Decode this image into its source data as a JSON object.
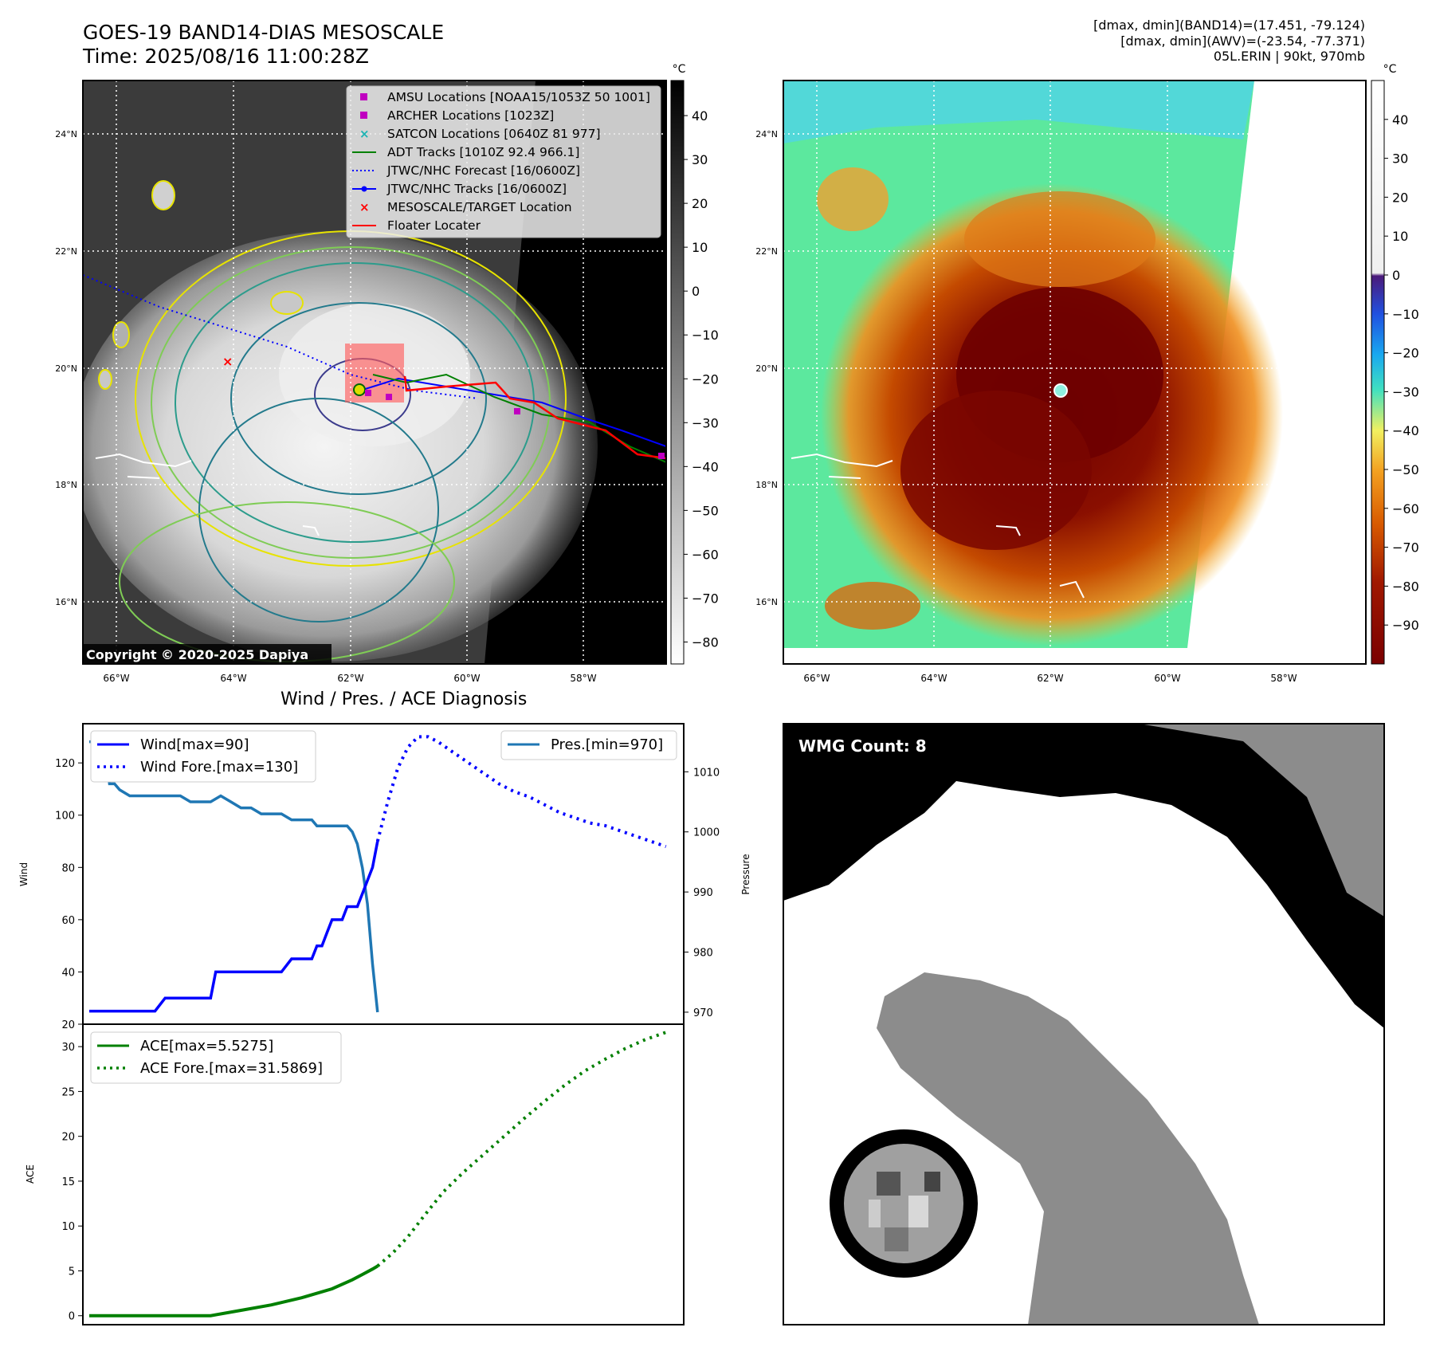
{
  "header": {
    "title_line1": "GOES-19 BAND14-DIAS MESOSCALE",
    "title_line2": "Time: 2025/08/16 11:00:28Z",
    "info_line1": "[dmax, dmin](BAND14)=(17.451, -79.124)",
    "info_line2": "[dmax, dmin](AWV)=(-23.54, -77.371)",
    "info_line3": "05L.ERIN | 90kt, 970mb"
  },
  "map_axes": {
    "lat_labels": [
      "24°N",
      "22°N",
      "20°N",
      "18°N",
      "16°N"
    ],
    "lon_labels_left": [
      "66°W",
      "64°W",
      "62°W",
      "60°W",
      "58°W"
    ],
    "lon_labels_right": [
      "66°W",
      "64°W",
      "62°W",
      "60°W",
      "58°W"
    ]
  },
  "colorbar_left": {
    "unit": "°C",
    "ticks": [
      "40",
      "30",
      "20",
      "10",
      "0",
      "−10",
      "−20",
      "−30",
      "−40",
      "−50",
      "−60",
      "−70",
      "−80"
    ],
    "range": [
      -85,
      48
    ]
  },
  "colorbar_right": {
    "unit": "°C",
    "ticks": [
      "40",
      "30",
      "20",
      "10",
      "0",
      "−10",
      "−20",
      "−30",
      "−40",
      "−50",
      "−60",
      "−70",
      "−80",
      "−90"
    ],
    "range": [
      -100,
      50
    ]
  },
  "legend_map": {
    "items": [
      {
        "label": "AMSU Locations [NOAA15/1053Z 50 1001]",
        "marker": "square",
        "color": "#c000c0"
      },
      {
        "label": "ARCHER Locations [1023Z]",
        "marker": "square",
        "color": "#c000c0"
      },
      {
        "label": "SATCON Locations [0640Z 81 977]",
        "marker": "x",
        "color": "#1bb3b3"
      },
      {
        "label": "ADT Tracks [1010Z 92.4 966.1]",
        "marker": "line",
        "color": "#008000"
      },
      {
        "label": "JTWC/NHC Forecast [16/0600Z]",
        "marker": "dotted",
        "color": "#0000ff"
      },
      {
        "label": "JTWC/NHC Tracks [16/0600Z]",
        "marker": "line-dot",
        "color": "#0000ff"
      },
      {
        "label": "MESOSCALE/TARGET Location",
        "marker": "x",
        "color": "#ff0000"
      },
      {
        "label": "Floater Locater",
        "marker": "line",
        "color": "#ff0000"
      }
    ]
  },
  "copyright": "Copyright © 2020-2025 Dapiya",
  "diagnosis": {
    "title": "Wind / Pres. / ACE Diagnosis",
    "wind_ylabel": "Wind",
    "pres_ylabel": "Pressure",
    "ace_ylabel": "ACE",
    "wind_ticks": [
      "120",
      "100",
      "80",
      "60",
      "40",
      "20"
    ],
    "pres_ticks": [
      "1010",
      "1000",
      "990",
      "980",
      "970"
    ],
    "ace_ticks": [
      "30",
      "25",
      "20",
      "15",
      "10",
      "5",
      "0"
    ],
    "legend_wind": [
      "Wind[max=90]",
      "Wind Fore.[max=130]"
    ],
    "legend_pres": [
      "Pres.[min=970]"
    ],
    "legend_ace": [
      "ACE[max=5.5275]",
      "ACE Fore.[max=31.5869]"
    ]
  },
  "wmg": {
    "label": "WMG Count: 8"
  },
  "chart_data": [
    {
      "type": "line",
      "title": "Wind / Pres. / ACE Diagnosis",
      "ylabel": "Wind",
      "ylim": [
        20,
        135
      ],
      "x": [
        0,
        1,
        2,
        3,
        4,
        5,
        6,
        7,
        8,
        9,
        10,
        11,
        12,
        13,
        14,
        15,
        16,
        17,
        18,
        19,
        20,
        21,
        22,
        23,
        24,
        25,
        26,
        27,
        28,
        29,
        30,
        31,
        32,
        33,
        34,
        35,
        36,
        37,
        38,
        39,
        40,
        41,
        42,
        43,
        44,
        45,
        46,
        47,
        48,
        49,
        50,
        51,
        52,
        53,
        54,
        55,
        56,
        57,
        58,
        59,
        60,
        61,
        62,
        63,
        64,
        65,
        66,
        67,
        68,
        69,
        70,
        71,
        72,
        73,
        74,
        75,
        76,
        77,
        78,
        79,
        80,
        81,
        82,
        83,
        84,
        85,
        86,
        87,
        88,
        89,
        90,
        91,
        92,
        93,
        94,
        95,
        96,
        97,
        98,
        99,
        100,
        101,
        102,
        103,
        104,
        105,
        106,
        107,
        108,
        109,
        110,
        111,
        112,
        113,
        114,
        115
      ],
      "series": [
        {
          "name": "Wind[max=90]",
          "x": [
            0,
            13,
            15,
            18,
            19,
            24,
            25,
            30,
            32,
            33,
            38,
            40,
            42,
            44,
            45,
            46,
            47,
            48,
            49,
            50,
            51,
            52,
            53,
            54,
            55,
            56,
            57
          ],
          "values": [
            25,
            25,
            30,
            30,
            30,
            30,
            40,
            40,
            40,
            40,
            40,
            45,
            45,
            45,
            50,
            50,
            55,
            60,
            60,
            60,
            65,
            65,
            65,
            70,
            75,
            80,
            90
          ]
        },
        {
          "name": "Wind Fore.[max=130]",
          "x": [
            57,
            59,
            61,
            63,
            65,
            67,
            69,
            72,
            75,
            78,
            81,
            84,
            87,
            90,
            93,
            96,
            99,
            102,
            105,
            108,
            111,
            114
          ],
          "values": [
            90,
            105,
            118,
            126,
            130,
            130,
            128,
            124,
            120,
            116,
            112,
            109,
            107,
            104,
            101,
            99,
            97,
            96,
            94,
            92,
            90,
            88
          ]
        },
        {
          "name": "Pres.[min=970]",
          "x": [
            0,
            1,
            2,
            3,
            4,
            5,
            6,
            8,
            10,
            14,
            18,
            20,
            22,
            24,
            26,
            28,
            30,
            32,
            34,
            36,
            38,
            40,
            42,
            44,
            45,
            46,
            47,
            48,
            49,
            50,
            51,
            52,
            53,
            54,
            55,
            56,
            57
          ],
          "values": [
            1015,
            1015,
            1015,
            1015,
            1008,
            1008,
            1007,
            1006,
            1006,
            1006,
            1006,
            1005,
            1005,
            1005,
            1006,
            1005,
            1004,
            1004,
            1003,
            1003,
            1003,
            1002,
            1002,
            1002,
            1001,
            1001,
            1001,
            1001,
            1001,
            1001,
            1001,
            1000,
            998,
            994,
            988,
            978,
            970
          ]
        }
      ]
    },
    {
      "type": "line",
      "ylabel": "ACE",
      "ylim": [
        -1,
        32.5
      ],
      "series": [
        {
          "name": "ACE[max=5.5275]",
          "x": [
            0,
            24,
            30,
            36,
            42,
            48,
            52,
            54,
            56,
            57
          ],
          "values": [
            0,
            0,
            0.6,
            1.2,
            2.0,
            3.0,
            4.0,
            4.6,
            5.2,
            5.53
          ]
        },
        {
          "name": "ACE Fore.[max=31.5869]",
          "x": [
            57,
            60,
            63,
            66,
            70,
            74,
            78,
            82,
            86,
            90,
            94,
            98,
            102,
            106,
            110,
            114
          ],
          "values": [
            5.53,
            7.0,
            8.8,
            11.0,
            13.8,
            16.0,
            18.0,
            20.0,
            22.0,
            23.9,
            25.7,
            27.3,
            28.6,
            29.8,
            30.8,
            31.59
          ]
        }
      ]
    }
  ]
}
